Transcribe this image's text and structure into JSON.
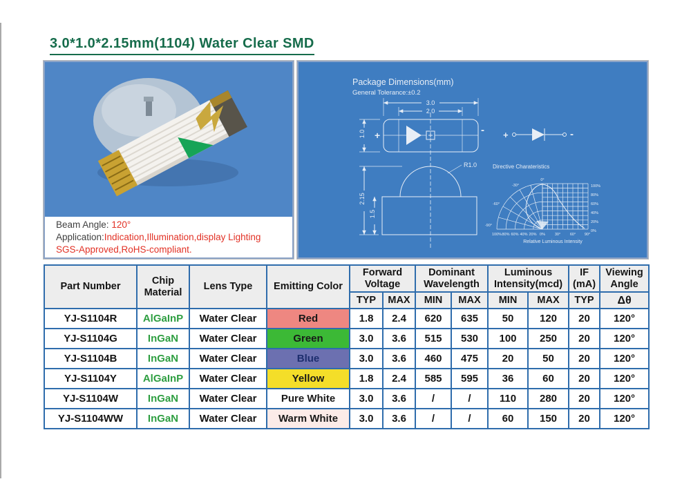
{
  "title": "3.0*1.0*2.15mm(1104) Water Clear SMD",
  "photo_panel": {
    "beam_label": "Beam Angle:",
    "beam_value": "120°",
    "app_label": "Application:",
    "app_value": "Indication,Illumination,display Lighting",
    "compliance": "SGS-Approved,RoHS-compliant."
  },
  "dims": {
    "heading": "Package Dimensions(mm)",
    "tolerance": "General Tolerance:±0.2",
    "dim_30": "3.0",
    "dim_20": "2.0",
    "dim_10": "1.0",
    "dim_215": "2.15",
    "dim_15": "1.5",
    "radius": "R1.0",
    "plus": "+",
    "minus": "-",
    "polar_title": "Directive Charateristics",
    "polar_caption": "Relative Luminous Intensity",
    "angle_labels": [
      "0°",
      "-30°",
      "-60°",
      "-90°"
    ],
    "right_labels": [
      "100%",
      "80%",
      "60%",
      "40%",
      "20%",
      "0%"
    ],
    "bottom_labels": [
      "100%",
      "80%",
      "60%",
      "40%",
      "20%",
      "0%",
      "30°",
      "60°",
      "90°"
    ]
  },
  "table": {
    "headers": {
      "part_number": "Part Number",
      "chip_material": "Chip Material",
      "lens_type": "Lens Type",
      "emitting_color": "Emitting Color",
      "forward_voltage": "Forward Voltage",
      "dominant_wavelength": "Dominant Wavelength",
      "luminous_intensity": "Luminous Intensity(mcd)",
      "if_ma": "IF (mA)",
      "viewing_angle": "Viewing Angle",
      "sub": [
        "TYP",
        "MAX",
        "MIN",
        "MAX",
        "MIN",
        "MAX",
        "TYP",
        "Δθ"
      ]
    },
    "colors": {
      "border": "#2e6cac",
      "header_bg": "#ededed",
      "chip_text": "#2e9e41"
    },
    "rows": [
      {
        "part": "YJ-S1104R",
        "chip": "AlGaInP",
        "lens": "Water Clear",
        "color": "Red",
        "color_bg": "#ee8781",
        "color_text": "#191919",
        "values": [
          "1.8",
          "2.4",
          "620",
          "635",
          "50",
          "120",
          "20",
          "120°"
        ]
      },
      {
        "part": "YJ-S1104G",
        "chip": "InGaN",
        "lens": "Water Clear",
        "color": "Green",
        "color_bg": "#3cb936",
        "color_text": "#191919",
        "values": [
          "3.0",
          "3.6",
          "515",
          "530",
          "100",
          "250",
          "20",
          "120°"
        ]
      },
      {
        "part": "YJ-S1104B",
        "chip": "InGaN",
        "lens": "Water Clear",
        "color": "Blue",
        "color_bg": "#6c70b0",
        "color_text": "#1d2e6e",
        "values": [
          "3.0",
          "3.6",
          "460",
          "475",
          "20",
          "50",
          "20",
          "120°"
        ]
      },
      {
        "part": "YJ-S1104Y",
        "chip": "AlGaInP",
        "lens": "Water Clear",
        "color": "Yellow",
        "color_bg": "#f4de29",
        "color_text": "#191919",
        "values": [
          "1.8",
          "2.4",
          "585",
          "595",
          "36",
          "60",
          "20",
          "120°"
        ]
      },
      {
        "part": "YJ-S1104W",
        "chip": "InGaN",
        "lens": "Water Clear",
        "color": "Pure White",
        "color_bg": "#ffffff",
        "color_text": "#191919",
        "values": [
          "3.0",
          "3.6",
          "/",
          "/",
          "110",
          "280",
          "20",
          "120°"
        ]
      },
      {
        "part": "YJ-S1104WW",
        "chip": "InGaN",
        "lens": "Water Clear",
        "color": "Warm White",
        "color_bg": "#fcebe8",
        "color_text": "#191919",
        "values": [
          "3.0",
          "3.6",
          "/",
          "/",
          "60",
          "150",
          "20",
          "120°"
        ]
      }
    ]
  }
}
